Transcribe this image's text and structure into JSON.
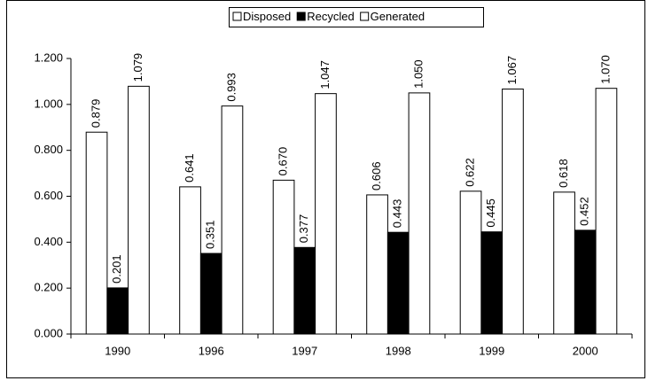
{
  "chart_data": {
    "type": "bar",
    "categories": [
      "1990",
      "1996",
      "1997",
      "1998",
      "1999",
      "2000"
    ],
    "series": [
      {
        "name": "Disposed",
        "color": "#ffffff",
        "values": [
          0.879,
          0.641,
          0.67,
          0.606,
          0.622,
          0.618
        ],
        "value_labels": [
          "0.879",
          "0.641",
          "0.670",
          "0.606",
          "0.622",
          "0.618"
        ]
      },
      {
        "name": "Recycled",
        "color": "#000000",
        "values": [
          0.201,
          0.351,
          0.377,
          0.443,
          0.445,
          0.452
        ],
        "value_labels": [
          "0.201",
          "0.351",
          "0.377",
          "0.443",
          "0.445",
          "0.452"
        ]
      },
      {
        "name": "Generated",
        "color": "#ffffff",
        "values": [
          1.079,
          0.993,
          1.047,
          1.05,
          1.067,
          1.07
        ],
        "value_labels": [
          "1.079",
          "0.993",
          "1.047",
          "1.050",
          "1.067",
          "1.070"
        ]
      }
    ],
    "ylim": [
      0,
      1.2
    ],
    "yticks": [
      {
        "value": 0,
        "label": "0.000"
      },
      {
        "value": 0.2,
        "label": "0.200"
      },
      {
        "value": 0.4,
        "label": "0.400"
      },
      {
        "value": 0.6,
        "label": "0.600"
      },
      {
        "value": 0.8,
        "label": "0.800"
      },
      {
        "value": 1.0,
        "label": "1.000"
      },
      {
        "value": 1.2,
        "label": "1.200"
      }
    ],
    "legend": "top",
    "grid": false
  }
}
